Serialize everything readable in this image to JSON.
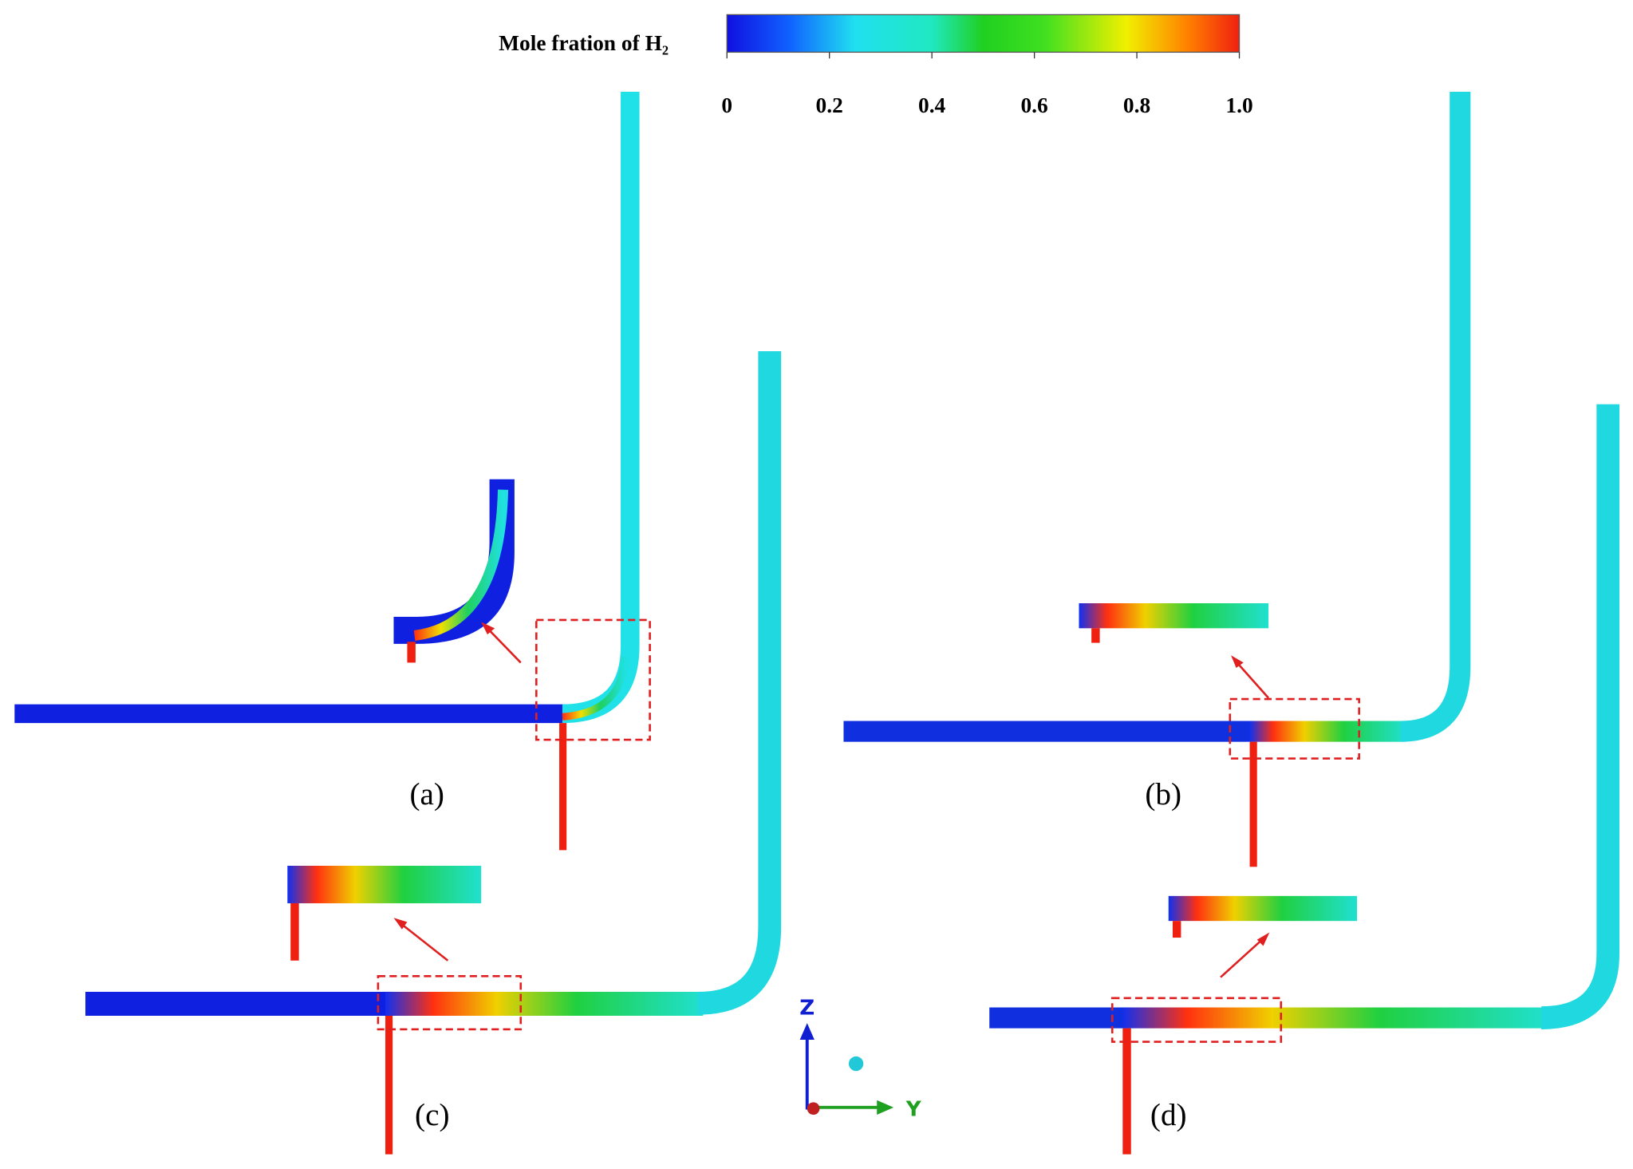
{
  "colorbar": {
    "title": "Mole fration of H₂",
    "lim": [
      0,
      1
    ],
    "ticks": [
      0,
      0.2,
      0.4,
      0.6,
      0.8,
      {
        "value": 1,
        "label": "1.0"
      }
    ]
  },
  "panels": [
    "(a)",
    "(b)",
    "(c)",
    "(d)"
  ],
  "axes": {
    "z": "Z",
    "y": "Y"
  }
}
